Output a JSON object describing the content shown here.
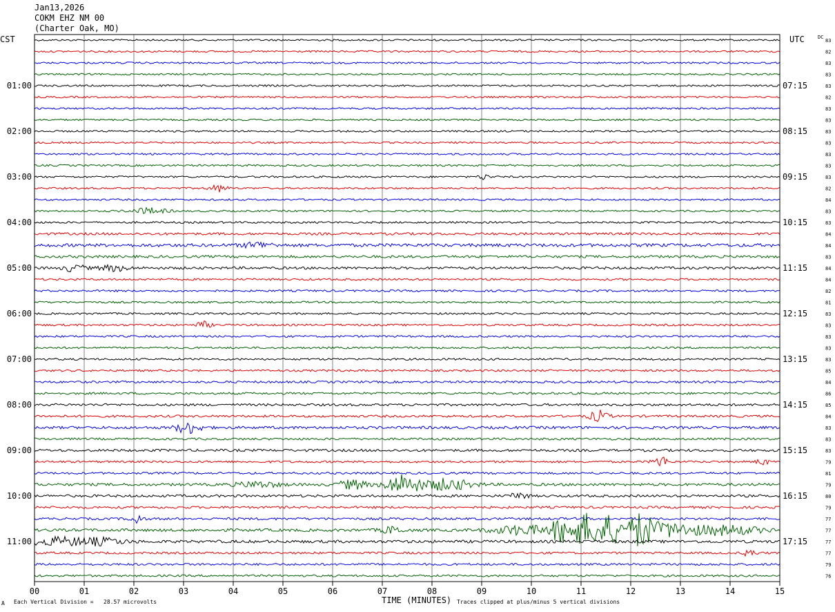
{
  "header": {
    "date": "Jan13,2026",
    "station": "COKM EHZ NM 00",
    "location": "(Charter Oak, MO)"
  },
  "left_tz": "CST",
  "right_tz": "UTC",
  "dc_label": "DC",
  "footer": {
    "scale_mark": "A",
    "division": "Each Vertical Division =   28.57 microvolts",
    "clipped": "Traces clipped at plus/minus 5 vertical divisions"
  },
  "colors": {
    "trace_cycle": [
      "#000000",
      "#e00000",
      "#0000e0",
      "#006000"
    ],
    "grid": "#808080"
  },
  "chart_data": {
    "type": "line",
    "title": "",
    "xlabel": "TIME (MINUTES)",
    "xlim": [
      0,
      15
    ],
    "x_ticks": [
      "00",
      "01",
      "02",
      "03",
      "04",
      "05",
      "06",
      "07",
      "08",
      "09",
      "10",
      "11",
      "12",
      "13",
      "14",
      "15"
    ],
    "traces_per_row_hour": 4,
    "trace_count": 48,
    "left_labels": [
      {
        "trace": 4,
        "label": "01:00"
      },
      {
        "trace": 8,
        "label": "02:00"
      },
      {
        "trace": 12,
        "label": "03:00"
      },
      {
        "trace": 16,
        "label": "04:00"
      },
      {
        "trace": 20,
        "label": "05:00"
      },
      {
        "trace": 24,
        "label": "06:00"
      },
      {
        "trace": 28,
        "label": "07:00"
      },
      {
        "trace": 32,
        "label": "08:00"
      },
      {
        "trace": 36,
        "label": "09:00"
      },
      {
        "trace": 40,
        "label": "10:00"
      },
      {
        "trace": 44,
        "label": "11:00"
      }
    ],
    "right_labels": [
      {
        "trace": 4,
        "label": "07:15"
      },
      {
        "trace": 8,
        "label": "08:15"
      },
      {
        "trace": 12,
        "label": "09:15"
      },
      {
        "trace": 16,
        "label": "10:15"
      },
      {
        "trace": 20,
        "label": "11:15"
      },
      {
        "trace": 24,
        "label": "12:15"
      },
      {
        "trace": 28,
        "label": "13:15"
      },
      {
        "trace": 32,
        "label": "14:15"
      },
      {
        "trace": 36,
        "label": "15:15"
      },
      {
        "trace": 40,
        "label": "16:15"
      },
      {
        "trace": 44,
        "label": "17:15"
      }
    ],
    "dc_values": [
      "83",
      "82",
      "83",
      "83",
      "83",
      "82",
      "83",
      "83",
      "83",
      "83",
      "83",
      "83",
      "83",
      "82",
      "84",
      "83",
      "83",
      "84",
      "84",
      "83",
      "84",
      "84",
      "82",
      "81",
      "83",
      "83",
      "83",
      "83",
      "83",
      "85",
      "84",
      "86",
      "85",
      "84",
      "83",
      "83",
      "83",
      "79",
      "81",
      "79",
      "80",
      "79",
      "77",
      "77",
      "77",
      "77",
      "79",
      "76"
    ],
    "noise_levels": [
      1.0,
      1.0,
      1.0,
      1.0,
      1.0,
      1.0,
      1.0,
      1.0,
      1.0,
      1.0,
      1.0,
      1.0,
      1.0,
      1.0,
      1.0,
      1.0,
      1.1,
      1.4,
      1.8,
      1.4,
      1.4,
      1.1,
      1.1,
      1.1,
      1.1,
      1.1,
      1.1,
      1.1,
      1.1,
      1.1,
      1.2,
      1.2,
      1.3,
      1.3,
      1.5,
      1.2,
      1.4,
      1.2,
      1.2,
      1.5,
      1.4,
      1.3,
      1.3,
      1.6,
      1.6,
      1.2,
      1.2,
      1.2
    ],
    "events": [
      {
        "trace": 12,
        "t": 9.05,
        "amp": 2.5,
        "dur": 0.15
      },
      {
        "trace": 13,
        "t": 3.7,
        "amp": 3,
        "dur": 0.25
      },
      {
        "trace": 15,
        "t": 2.3,
        "amp": 2.5,
        "dur": 0.5
      },
      {
        "trace": 18,
        "t": 4.5,
        "amp": 2.5,
        "dur": 0.4
      },
      {
        "trace": 20,
        "t": 0.8,
        "amp": 3,
        "dur": 0.3
      },
      {
        "trace": 20,
        "t": 1.6,
        "amp": 2.5,
        "dur": 0.4
      },
      {
        "trace": 25,
        "t": 3.4,
        "amp": 3,
        "dur": 0.2
      },
      {
        "trace": 33,
        "t": 11.35,
        "amp": 5,
        "dur": 0.25
      },
      {
        "trace": 34,
        "t": 3.1,
        "amp": 5,
        "dur": 0.35
      },
      {
        "trace": 37,
        "t": 12.6,
        "amp": 5,
        "dur": 0.2
      },
      {
        "trace": 37,
        "t": 14.65,
        "amp": 3,
        "dur": 0.15
      },
      {
        "trace": 39,
        "t": 7.4,
        "amp": 9,
        "dur": 0.45
      },
      {
        "trace": 39,
        "t": 6.4,
        "amp": 4,
        "dur": 0.4
      },
      {
        "trace": 39,
        "t": 8.3,
        "amp": 5,
        "dur": 0.7
      },
      {
        "trace": 39,
        "t": 4.5,
        "amp": 2.5,
        "dur": 0.6
      },
      {
        "trace": 40,
        "t": 9.75,
        "amp": 3.5,
        "dur": 0.2
      },
      {
        "trace": 42,
        "t": 2.05,
        "amp": 5,
        "dur": 0.15
      },
      {
        "trace": 43,
        "t": 7.2,
        "amp": 3,
        "dur": 0.3
      },
      {
        "trace": 43,
        "t": 10.6,
        "amp": 10,
        "dur": 0.3
      },
      {
        "trace": 43,
        "t": 11.1,
        "amp": 14,
        "dur": 0.4
      },
      {
        "trace": 43,
        "t": 11.6,
        "amp": 12,
        "dur": 0.4
      },
      {
        "trace": 43,
        "t": 12.2,
        "amp": 14,
        "dur": 0.3
      },
      {
        "trace": 43,
        "t": 12.7,
        "amp": 6,
        "dur": 0.8
      },
      {
        "trace": 43,
        "t": 13.9,
        "amp": 4,
        "dur": 1.0
      },
      {
        "trace": 43,
        "t": 9.8,
        "amp": 4,
        "dur": 0.8
      },
      {
        "trace": 44,
        "t": 0.5,
        "amp": 3.5,
        "dur": 0.9
      },
      {
        "trace": 44,
        "t": 1.4,
        "amp": 2.5,
        "dur": 0.6
      },
      {
        "trace": 45,
        "t": 14.4,
        "amp": 4,
        "dur": 0.15
      }
    ]
  }
}
